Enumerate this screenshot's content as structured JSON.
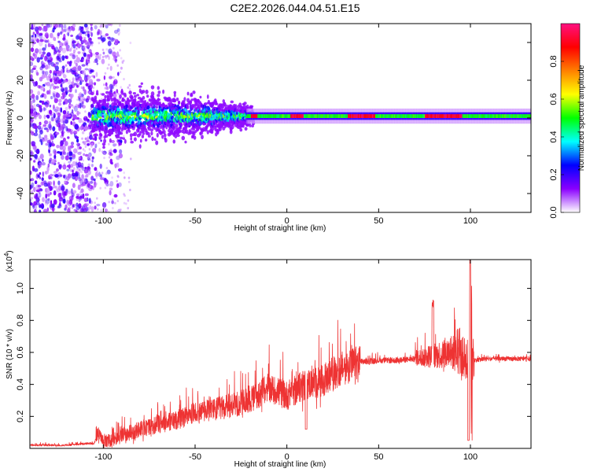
{
  "figure": {
    "title": "C2E2.2026.044.04.51.E15"
  },
  "chart_data": [
    {
      "type": "heatmap",
      "title": "C2E2.2026.044.04.51.E15",
      "xlabel": "Height of straight line (km)",
      "ylabel": "Frequency (Hz)",
      "xlim": [
        -140,
        133
      ],
      "ylim": [
        -50,
        50
      ],
      "xticks": [
        -100,
        -50,
        0,
        50,
        100
      ],
      "yticks": [
        -40,
        -20,
        0,
        20,
        40
      ],
      "colorbar": {
        "label": "Normalized spectral amplitude",
        "range": [
          0,
          1
        ],
        "ticks": [
          0.0,
          0.2,
          0.4,
          0.6,
          0.8
        ],
        "stops": [
          "#ffffff",
          "#8a00ff",
          "#0000ff",
          "#00ffff",
          "#00ff00",
          "#ffff00",
          "#ff8000",
          "#ff0000",
          "#ff1080"
        ]
      },
      "description": "Scattered noise at low heights (-140 to -100 km); strong signal band near 0–2 Hz from -105 km to 133 km, narrowing after -20 km with peaks near 0–5 km, 35–45 km, 75–95 km."
    },
    {
      "type": "line",
      "xlabel": "Height of straight line (km)",
      "ylabel": "SNR (10 * v/v)",
      "scale_note": "(x10",
      "scale_exp": "4",
      "scale_close": ")",
      "xlim": [
        -140,
        133
      ],
      "ylim": [
        0,
        1.18
      ],
      "xticks": [
        -100,
        -50,
        0,
        50,
        100
      ],
      "yticks": [
        0.2,
        0.4,
        0.6,
        0.8,
        1.0
      ],
      "color": "#ee3333",
      "series": [
        {
          "name": "SNR",
          "x": [
            -140,
            -130,
            -120,
            -110,
            -105,
            -103,
            -100,
            -95,
            -90,
            -80,
            -70,
            -60,
            -50,
            -40,
            -30,
            -20,
            -10,
            0,
            10,
            20,
            30,
            40,
            50,
            60,
            70,
            80,
            90,
            100,
            110,
            120,
            133
          ],
          "y": [
            0.02,
            0.02,
            0.02,
            0.03,
            0.03,
            0.1,
            0.04,
            0.05,
            0.08,
            0.12,
            0.15,
            0.18,
            0.22,
            0.24,
            0.27,
            0.3,
            0.38,
            0.33,
            0.4,
            0.42,
            0.5,
            0.54,
            0.55,
            0.55,
            0.56,
            0.58,
            0.6,
            0.55,
            0.56,
            0.56,
            0.56
          ]
        }
      ]
    }
  ]
}
